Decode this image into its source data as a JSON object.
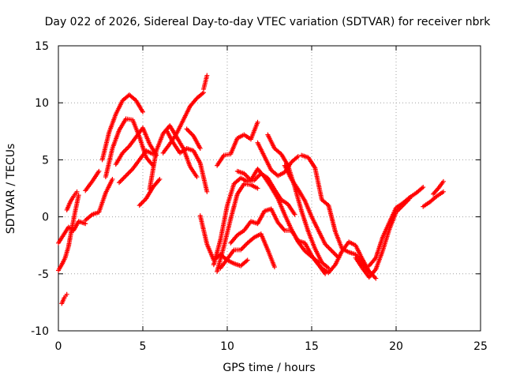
{
  "chart_data": {
    "type": "scatter",
    "title": "Day 022 of 2026, Sidereal Day-to-day VTEC variation (SDTVAR) for receiver nbrk",
    "xlabel": "GPS time / hours",
    "ylabel": "SDTVAR / TECUs",
    "xlim": [
      0,
      25
    ],
    "ylim": [
      -10,
      15
    ],
    "xticks": [
      0,
      5,
      10,
      15,
      20,
      25
    ],
    "yticks": [
      -10,
      -5,
      0,
      5,
      10,
      15
    ],
    "grid": true,
    "marker": "+",
    "color": "#ff0000",
    "series": [
      {
        "name": "arc01",
        "x": [
          0.0,
          0.3,
          0.6,
          0.9,
          1.2,
          1.6
        ],
        "y": [
          -2.3,
          -1.6,
          -0.9,
          -1.2,
          -0.4,
          -0.6
        ]
      },
      {
        "name": "arc02",
        "x": [
          0.0,
          0.2,
          0.4,
          0.6,
          0.8,
          1.0,
          1.2
        ],
        "y": [
          -4.7,
          -4.2,
          -3.6,
          -2.6,
          -1.0,
          0.5,
          1.9
        ]
      },
      {
        "name": "arc03",
        "x": [
          0.2,
          0.35,
          0.5
        ],
        "y": [
          -7.6,
          -7.1,
          -6.8
        ]
      },
      {
        "name": "arc04",
        "x": [
          0.5,
          0.7,
          0.9,
          1.1
        ],
        "y": [
          0.6,
          1.3,
          1.8,
          2.2
        ]
      },
      {
        "name": "arc05",
        "x": [
          1.6,
          2.0,
          2.4,
          2.8,
          3.2
        ],
        "y": [
          -0.3,
          0.2,
          0.4,
          2.1,
          3.3
        ]
      },
      {
        "name": "arc06",
        "x": [
          1.6,
          2.0,
          2.4
        ],
        "y": [
          2.3,
          3.1,
          4.0
        ]
      },
      {
        "name": "arc07",
        "x": [
          2.6,
          3.0,
          3.4,
          3.8,
          4.2,
          4.6,
          5.0
        ],
        "y": [
          5.0,
          7.4,
          9.0,
          10.2,
          10.7,
          10.2,
          9.2
        ]
      },
      {
        "name": "arc08",
        "x": [
          2.8,
          3.2,
          3.6,
          4.0,
          4.4,
          4.8,
          5.2,
          5.6
        ],
        "y": [
          3.5,
          6.0,
          7.6,
          8.6,
          8.5,
          7.0,
          5.2,
          4.5
        ]
      },
      {
        "name": "arc09",
        "x": [
          3.4,
          3.8,
          4.2,
          4.6,
          5.0,
          5.4,
          5.8
        ],
        "y": [
          4.6,
          5.6,
          6.2,
          7.0,
          7.8,
          6.4,
          5.4
        ]
      },
      {
        "name": "arc10",
        "x": [
          3.6,
          4.0,
          4.4,
          4.8,
          5.2,
          5.6
        ],
        "y": [
          3.0,
          3.6,
          4.2,
          5.0,
          5.8,
          5.5
        ]
      },
      {
        "name": "arc11",
        "x": [
          4.8,
          5.2,
          5.6,
          6.0
        ],
        "y": [
          1.0,
          1.6,
          2.6,
          3.3
        ]
      },
      {
        "name": "arc12",
        "x": [
          5.4,
          5.8,
          6.2,
          6.6,
          7.0,
          7.4,
          7.8,
          8.2
        ],
        "y": [
          2.4,
          5.8,
          7.3,
          8.0,
          7.0,
          6.0,
          4.4,
          3.5
        ]
      },
      {
        "name": "arc13",
        "x": [
          6.2,
          6.6,
          7.0,
          7.4,
          7.8,
          8.2,
          8.6
        ],
        "y": [
          5.6,
          6.4,
          7.3,
          8.5,
          9.7,
          10.4,
          10.9
        ]
      },
      {
        "name": "arc14",
        "x": [
          6.4,
          6.8,
          7.2,
          7.6,
          8.0,
          8.4,
          8.8
        ],
        "y": [
          7.6,
          6.5,
          5.6,
          6.0,
          5.8,
          4.7,
          2.2
        ]
      },
      {
        "name": "arc15",
        "x": [
          8.6,
          8.8
        ],
        "y": [
          11.2,
          12.4
        ]
      },
      {
        "name": "arc16",
        "x": [
          7.6,
          8.0,
          8.4
        ],
        "y": [
          7.7,
          7.1,
          6.0
        ]
      },
      {
        "name": "arc17",
        "x": [
          8.4,
          8.8,
          9.2,
          9.6,
          10.0,
          10.4,
          10.8,
          11.2
        ],
        "y": [
          0.1,
          -2.4,
          -3.8,
          -3.3,
          -3.8,
          -4.1,
          -4.3,
          -3.8
        ]
      },
      {
        "name": "arc18",
        "x": [
          9.6,
          10.0,
          10.4,
          10.8,
          11.2,
          11.6,
          12.0,
          12.4,
          12.8
        ],
        "y": [
          -4.5,
          -3.7,
          -2.9,
          -2.9,
          -2.3,
          -1.8,
          -1.5,
          -2.9,
          -4.4
        ]
      },
      {
        "name": "arc19",
        "x": [
          9.4,
          9.8,
          10.2,
          10.6,
          11.0,
          11.4,
          11.8
        ],
        "y": [
          -4.8,
          -2.6,
          -0.2,
          2.0,
          2.9,
          2.8,
          2.5
        ]
      },
      {
        "name": "arc20",
        "x": [
          9.2,
          9.6,
          10.0,
          10.4,
          10.8,
          11.2,
          11.6,
          12.0,
          12.4,
          12.8,
          13.2,
          13.6,
          14.0
        ],
        "y": [
          -4.2,
          -2.0,
          1.0,
          2.9,
          3.4,
          3.1,
          3.2,
          3.8,
          3.4,
          2.4,
          1.5,
          1.1,
          0.2
        ]
      },
      {
        "name": "arc21",
        "x": [
          9.4,
          9.8,
          10.2,
          10.6,
          11.0,
          11.4,
          11.8
        ],
        "y": [
          4.5,
          5.4,
          5.5,
          6.9,
          7.2,
          6.8,
          8.3
        ]
      },
      {
        "name": "arc22",
        "x": [
          10.2,
          10.6,
          11.0,
          11.4,
          11.8,
          12.2,
          12.6,
          13.0,
          13.4,
          13.8,
          14.2,
          14.6,
          15.0,
          15.4,
          15.8
        ],
        "y": [
          -2.3,
          -1.6,
          -1.2,
          -0.4,
          -0.6,
          0.5,
          0.7,
          -0.5,
          -1.2,
          -1.2,
          -2.1,
          -2.3,
          -3.4,
          -4.2,
          -5.0
        ]
      },
      {
        "name": "arc23",
        "x": [
          10.6,
          11.0,
          11.4,
          11.8,
          12.2,
          12.6,
          13.0,
          13.4,
          13.8,
          14.2,
          14.6,
          15.0,
          15.4
        ],
        "y": [
          4.0,
          3.8,
          3.2,
          4.2,
          3.5,
          2.6,
          1.6,
          0.2,
          -1.1,
          -2.2,
          -3.0,
          -3.5,
          -4.0
        ]
      },
      {
        "name": "arc24",
        "x": [
          11.8,
          12.2,
          12.6,
          13.0,
          13.4,
          13.8,
          14.2
        ],
        "y": [
          6.5,
          5.3,
          4.1,
          3.6,
          3.9,
          4.8,
          5.3
        ]
      },
      {
        "name": "arc25",
        "x": [
          12.4,
          12.8,
          13.2,
          13.6,
          14.0,
          14.4,
          14.8,
          15.2,
          15.6,
          16.0
        ],
        "y": [
          7.2,
          6.0,
          5.5,
          4.5,
          2.6,
          0.5,
          -1.3,
          -2.8,
          -4.0,
          -4.5
        ]
      },
      {
        "name": "arc26",
        "x": [
          13.4,
          13.8,
          14.2,
          14.6,
          15.0,
          15.4,
          15.8,
          16.2,
          16.6
        ],
        "y": [
          4.5,
          3.3,
          2.4,
          1.4,
          0.0,
          -1.2,
          -2.4,
          -3.0,
          -3.6
        ]
      },
      {
        "name": "arc27",
        "x": [
          14.4,
          14.8,
          15.2,
          15.6,
          16.0,
          16.4,
          16.8,
          17.2,
          17.6,
          18.0,
          18.4,
          18.8
        ],
        "y": [
          5.4,
          5.2,
          4.3,
          1.5,
          1.0,
          -1.3,
          -2.8,
          -3.1,
          -3.3,
          -4.1,
          -4.8,
          -5.4
        ]
      },
      {
        "name": "arc28",
        "x": [
          15.2,
          15.6,
          16.0,
          16.4,
          16.8,
          17.2,
          17.6,
          18.0,
          18.4
        ],
        "y": [
          -3.8,
          -4.5,
          -4.9,
          -4.2,
          -3.0,
          -2.2,
          -2.5,
          -3.7,
          -4.8
        ]
      },
      {
        "name": "arc29",
        "x": [
          17.6,
          18.0,
          18.4,
          18.8,
          19.2,
          19.6,
          20.0,
          20.4,
          20.8
        ],
        "y": [
          -3.6,
          -4.5,
          -5.3,
          -4.6,
          -3.0,
          -1.1,
          0.4,
          1.0,
          1.6
        ]
      },
      {
        "name": "arc30",
        "x": [
          18.4,
          18.8,
          19.2,
          19.6,
          20.0,
          20.4,
          20.8,
          21.2,
          21.6
        ],
        "y": [
          -4.3,
          -3.6,
          -1.8,
          -0.5,
          0.8,
          1.2,
          1.7,
          2.1,
          2.6
        ]
      },
      {
        "name": "arc31",
        "x": [
          21.6,
          22.0,
          22.4,
          22.8
        ],
        "y": [
          0.9,
          1.3,
          1.8,
          2.2
        ]
      },
      {
        "name": "arc32",
        "x": [
          22.2,
          22.5,
          22.8
        ],
        "y": [
          2.0,
          2.5,
          3.1
        ]
      }
    ]
  }
}
